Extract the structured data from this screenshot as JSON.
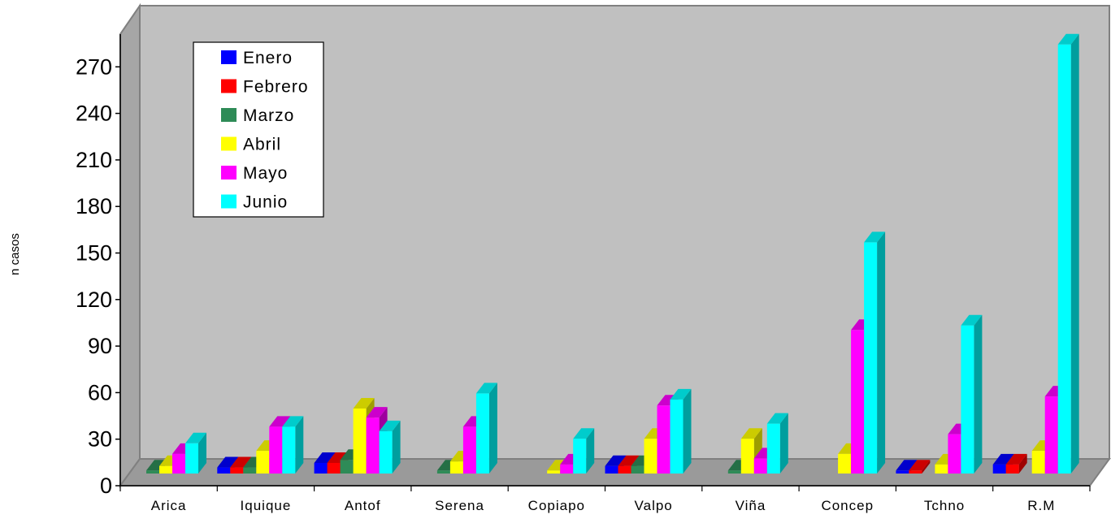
{
  "chart_data": {
    "type": "bar",
    "ylabel": "n casos",
    "ylim": [
      0,
      290
    ],
    "yticks": [
      0,
      30,
      60,
      90,
      120,
      150,
      180,
      210,
      240,
      270
    ],
    "grid": false,
    "legend_position": "top-left",
    "categories": [
      "Arica",
      "Iquique",
      "Antof",
      "Serena",
      "Copiapo",
      "Valpo",
      "Viña",
      "Concep",
      "Tchno",
      "R.M"
    ],
    "series": [
      {
        "name": "Enero",
        "color": "#0000ff",
        "values": [
          0,
          4,
          7,
          0,
          0,
          5,
          0,
          0,
          2,
          6
        ]
      },
      {
        "name": "Febrero",
        "color": "#ff0000",
        "values": [
          0,
          4,
          7,
          0,
          0,
          5,
          0,
          0,
          2,
          6
        ]
      },
      {
        "name": "Marzo",
        "color": "#2e8b57",
        "values": [
          2,
          4,
          9,
          2,
          0,
          5,
          2,
          0,
          0,
          0
        ]
      },
      {
        "name": "Abril",
        "color": "#ffff00",
        "values": [
          5,
          15,
          43,
          8,
          2,
          23,
          23,
          13,
          6,
          15
        ]
      },
      {
        "name": "Mayo",
        "color": "#ff00ff",
        "values": [
          13,
          31,
          37,
          31,
          6,
          45,
          10,
          95,
          26,
          51
        ]
      },
      {
        "name": "Junio",
        "color": "#00ffff",
        "values": [
          20,
          31,
          28,
          53,
          23,
          49,
          33,
          153,
          98,
          284
        ]
      }
    ]
  }
}
